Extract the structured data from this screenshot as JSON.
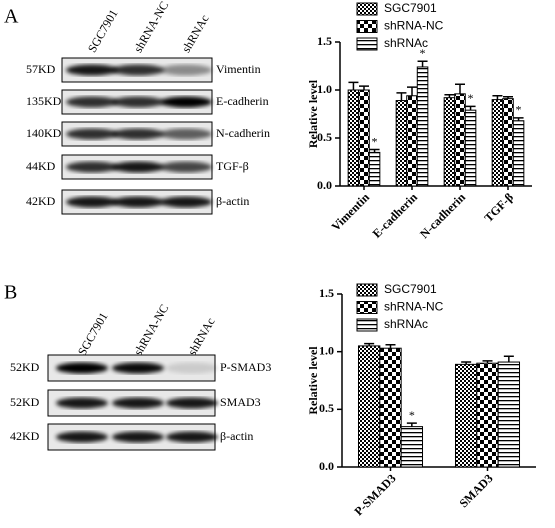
{
  "panel_labels": [
    "A",
    "B"
  ],
  "blots": [
    {
      "columns": [
        "SGC7901",
        "shRNA-NC",
        "shRNAc"
      ],
      "rows": [
        {
          "size": "57KD",
          "protein": "Vimentin"
        },
        {
          "size": "135KD",
          "protein": "E-cadherin"
        },
        {
          "size": "140KD",
          "protein": "N-cadherin"
        },
        {
          "size": "44KD",
          "protein": "TGF-β"
        },
        {
          "size": "42KD",
          "protein": "β-actin"
        }
      ]
    },
    {
      "columns": [
        "SGC7901",
        "shRNA-NC",
        "shRNAc"
      ],
      "rows": [
        {
          "size": "52KD",
          "protein": "P-SMAD3"
        },
        {
          "size": "52KD",
          "protein": "SMAD3"
        },
        {
          "size": "42KD",
          "protein": "β-actin"
        }
      ]
    }
  ],
  "chart_data": [
    {
      "type": "bar",
      "y_label": "Relative level",
      "categories": [
        "Vimentin",
        "E-cadherin",
        "N-cadherin",
        "TGF-β"
      ],
      "series": [
        {
          "name": "SGC7901",
          "color": "#000000",
          "values": [
            1.0,
            0.89,
            0.92,
            0.9
          ],
          "errors": [
            0.08,
            0.08,
            0.03,
            0.04
          ]
        },
        {
          "name": "shRNA-NC",
          "color": "#000000",
          "values": [
            1.0,
            0.94,
            0.96,
            0.91
          ],
          "errors": [
            0.04,
            0.09,
            0.1,
            0.02
          ]
        },
        {
          "name": "shRNAc",
          "color": "#000000",
          "values": [
            0.35,
            1.24,
            0.79,
            0.68
          ],
          "errors": [
            0.03,
            0.06,
            0.04,
            0.03
          ],
          "significance": [
            "*",
            "*",
            "*",
            "*"
          ]
        }
      ],
      "ylim": [
        0,
        1.5
      ],
      "yticks": [
        {
          "value": 0,
          "label": "0.0"
        },
        0.5,
        {
          "value": 1,
          "label": "1.0"
        },
        1.5
      ]
    },
    {
      "type": "bar",
      "y_label": "Relative level",
      "categories": [
        "P-SMAD3",
        "SMAD3"
      ],
      "series": [
        {
          "name": "SGC7901",
          "color": "#000000",
          "values": [
            1.05,
            0.89
          ],
          "errors": [
            0.02,
            0.02
          ]
        },
        {
          "name": "shRNA-NC",
          "color": "#000000",
          "values": [
            1.03,
            0.9
          ],
          "errors": [
            0.03,
            0.02
          ]
        },
        {
          "name": "shRNAc",
          "color": "#000000",
          "values": [
            0.35,
            0.91
          ],
          "errors": [
            0.03,
            0.05
          ],
          "significance": [
            "*",
            null
          ]
        }
      ],
      "ylim": [
        0,
        1.5
      ],
      "yticks": [
        {
          "value": 0,
          "label": "0.0"
        },
        0.5,
        {
          "value": 1,
          "label": "1.0"
        },
        1.5
      ]
    }
  ]
}
